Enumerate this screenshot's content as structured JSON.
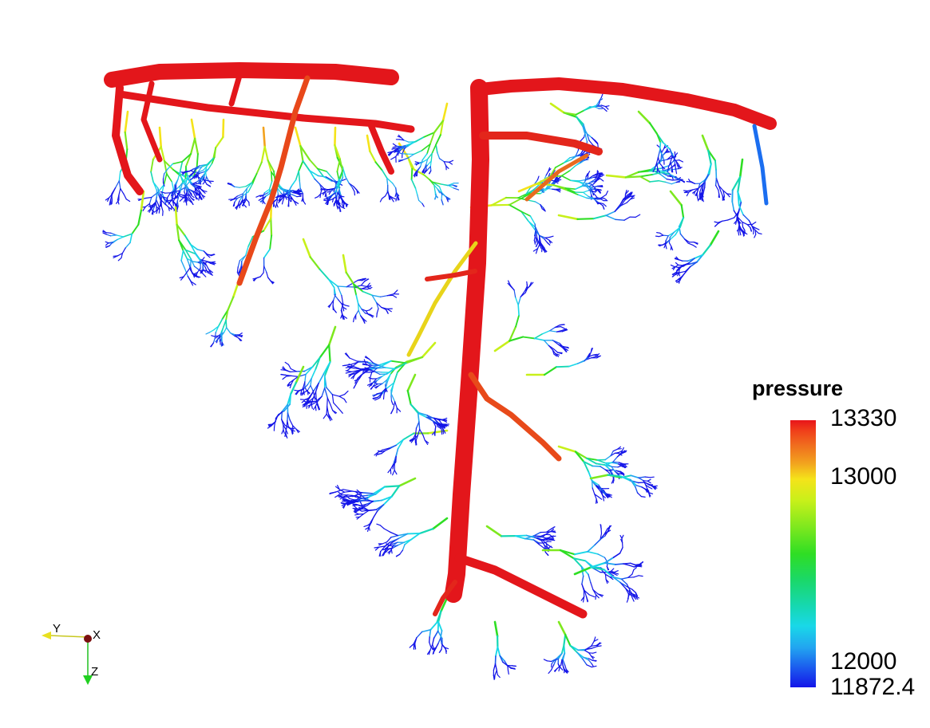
{
  "scene": {
    "subject": "vascular-tree",
    "colormap": [
      "#1415e8",
      "#1b58ee",
      "#22a6f0",
      "#19d8e8",
      "#16d8b4",
      "#2fde24",
      "#7ee81e",
      "#c8f01a",
      "#f5e31a",
      "#f2a21e",
      "#f06a1e",
      "#e8141a"
    ]
  },
  "legend": {
    "title": "pressure",
    "ticks": [
      "13330",
      "13000",
      "12000",
      "11872.4"
    ]
  },
  "axes": {
    "y_label": "Y",
    "x_label": "X",
    "z_label": "Z"
  }
}
